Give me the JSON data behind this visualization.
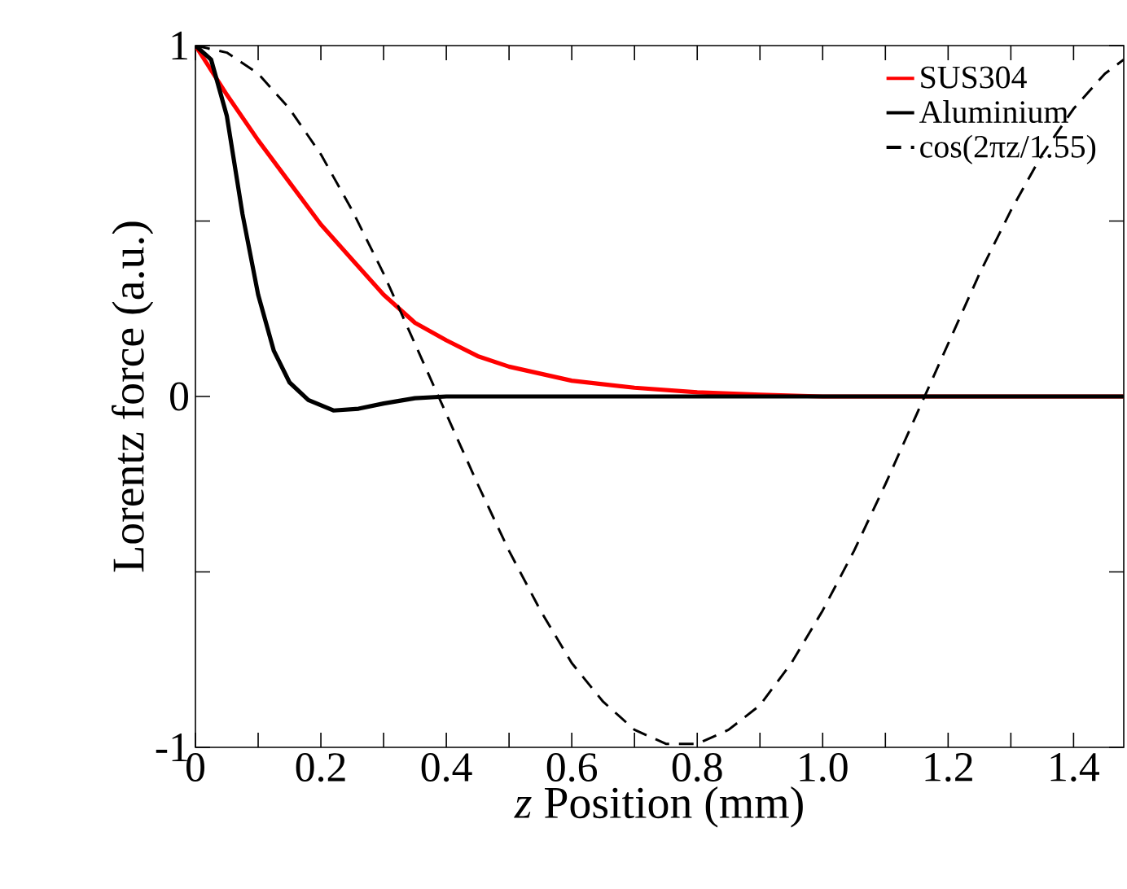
{
  "chart_data": {
    "type": "line",
    "xlabel": "*z* Position (mm)",
    "ylabel": "Lorentz force (a.u.)",
    "xlim": [
      0,
      1.48
    ],
    "ylim": [
      -1,
      1
    ],
    "xticks": [
      {
        "value": 0,
        "label": "0"
      },
      {
        "value": 0.1,
        "label": null
      },
      {
        "value": 0.2,
        "label": "0.2"
      },
      {
        "value": 0.3,
        "label": null
      },
      {
        "value": 0.4,
        "label": "0.4"
      },
      {
        "value": 0.5,
        "label": null
      },
      {
        "value": 0.6,
        "label": "0.6"
      },
      {
        "value": 0.7,
        "label": null
      },
      {
        "value": 0.8,
        "label": "0.8"
      },
      {
        "value": 0.9,
        "label": null
      },
      {
        "value": 1.0,
        "label": "1.0"
      },
      {
        "value": 1.1,
        "label": null
      },
      {
        "value": 1.2,
        "label": "1.2"
      },
      {
        "value": 1.3,
        "label": null
      },
      {
        "value": 1.4,
        "label": "1.4"
      }
    ],
    "yticks": [
      -1,
      {
        "value": -0.5,
        "label": null
      },
      0,
      {
        "value": 0.5,
        "label": null
      },
      1
    ],
    "grid": false,
    "legend": "top right",
    "marker": "none",
    "series": [
      {
        "name": "SUS304",
        "color": "#ff0000",
        "line_style": "solid",
        "x": [
          0,
          0.05,
          0.1,
          0.15,
          0.2,
          0.25,
          0.3,
          0.35,
          0.4,
          0.45,
          0.5,
          0.6,
          0.7,
          0.8,
          0.9,
          1.0,
          1.48
        ],
        "values": [
          1,
          0.86,
          0.73,
          0.61,
          0.49,
          0.39,
          0.29,
          0.21,
          0.16,
          0.115,
          0.085,
          0.045,
          0.025,
          0.012,
          0.005,
          0,
          0
        ]
      },
      {
        "name": "Aluminium",
        "color": "#000000",
        "line_style": "solid",
        "x": [
          0,
          0.025,
          0.05,
          0.075,
          0.1,
          0.125,
          0.15,
          0.18,
          0.22,
          0.26,
          0.3,
          0.35,
          0.4,
          1.48
        ],
        "values": [
          1,
          0.96,
          0.8,
          0.52,
          0.29,
          0.13,
          0.04,
          -0.01,
          -0.04,
          -0.035,
          -0.02,
          -0.005,
          0,
          0
        ]
      },
      {
        "name": "cos(2πz/1.55)",
        "color": "#000000",
        "line_style": "dashed",
        "x": [
          0,
          0.05,
          0.1,
          0.15,
          0.2,
          0.25,
          0.3,
          0.35,
          0.4,
          0.45,
          0.5,
          0.55,
          0.6,
          0.65,
          0.7,
          0.75,
          0.8,
          0.85,
          0.9,
          0.95,
          1.0,
          1.05,
          1.1,
          1.15,
          1.2,
          1.25,
          1.3,
          1.35,
          1.4,
          1.45,
          1.48
        ],
        "values": [
          1,
          0.98,
          0.92,
          0.82,
          0.69,
          0.53,
          0.35,
          0.15,
          -0.05,
          -0.25,
          -0.44,
          -0.61,
          -0.76,
          -0.87,
          -0.95,
          -0.99,
          -0.99,
          -0.95,
          -0.88,
          -0.76,
          -0.61,
          -0.44,
          -0.25,
          -0.05,
          0.15,
          0.35,
          0.53,
          0.69,
          0.82,
          0.92,
          0.96
        ]
      }
    ]
  }
}
